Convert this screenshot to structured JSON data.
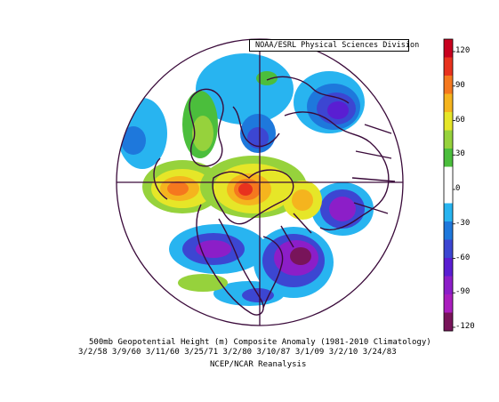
{
  "credit": "NOAA/ESRL Physical Sciences Division",
  "caption": {
    "line1": "500mb Geopotential Height (m) Composite Anomaly (1981-2010 Climatology)",
    "line2": "3/2/58 3/9/60 3/11/60 3/25/71 3/2/80 3/10/87 3/1/09 3/2/10 3/24/83",
    "line3": "NCEP/NCAR Reanalysis"
  },
  "colorbar": {
    "labels": [
      "120",
      "90",
      "60",
      "30",
      "0",
      "-30",
      "-60",
      "-90",
      "-120"
    ],
    "colors": [
      "#c8001e",
      "#e8321e",
      "#f5781e",
      "#f5b41e",
      "#e6e628",
      "#96d23c",
      "#4bbe3c",
      "#ffffff",
      "#ffffff",
      "#28b4f0",
      "#1e78dc",
      "#3c46d2",
      "#5a1ed2",
      "#8c1ec8",
      "#aa1ebe",
      "#78145a"
    ]
  },
  "map": {
    "projection": "north-polar-stereographic",
    "lines": "coastlines-and-borders"
  }
}
